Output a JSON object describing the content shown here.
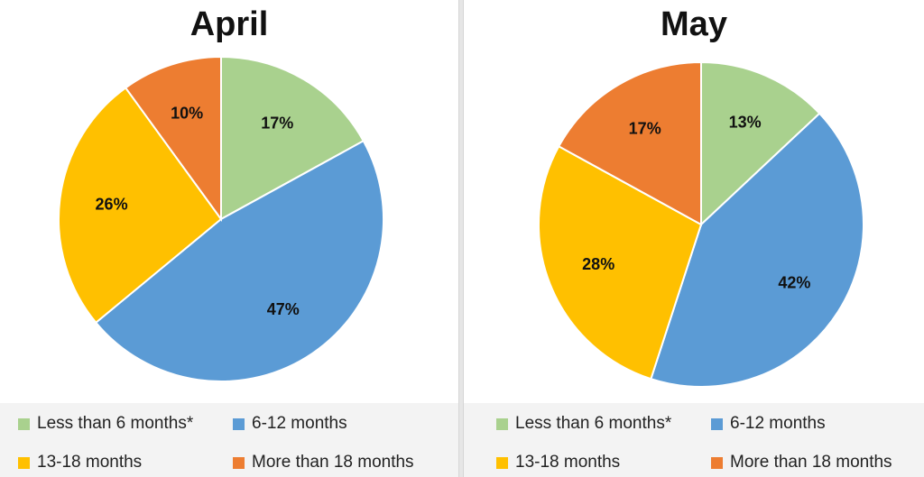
{
  "colors": {
    "less_than_6": "#a9d18e",
    "m6_12": "#5b9bd5",
    "m13_18": "#ffc000",
    "more_than_18": "#ed7d31"
  },
  "legend": [
    {
      "label": "Less than 6 months*",
      "color": "#a9d18e"
    },
    {
      "label": "6-12 months",
      "color": "#5b9bd5"
    },
    {
      "label": "13-18 months",
      "color": "#ffc000"
    },
    {
      "label": "More than 18 months",
      "color": "#ed7d31"
    }
  ],
  "chart_data": [
    {
      "type": "pie",
      "title": "April",
      "categories": [
        "Less than 6 months*",
        "6-12 months",
        "13-18 months",
        "More than 18 months"
      ],
      "values": [
        17,
        47,
        26,
        10
      ],
      "data_labels": [
        "17%",
        "47%",
        "26%",
        "10%"
      ],
      "start": "12 o'clock, clockwise",
      "legend_position": "bottom"
    },
    {
      "type": "pie",
      "title": "May",
      "categories": [
        "Less than 6 months*",
        "6-12 months",
        "13-18 months",
        "More than 18 months"
      ],
      "values": [
        13,
        42,
        28,
        17
      ],
      "data_labels": [
        "13%",
        "42%",
        "28%",
        "17%"
      ],
      "start": "12 o'clock, clockwise",
      "legend_position": "bottom"
    }
  ]
}
